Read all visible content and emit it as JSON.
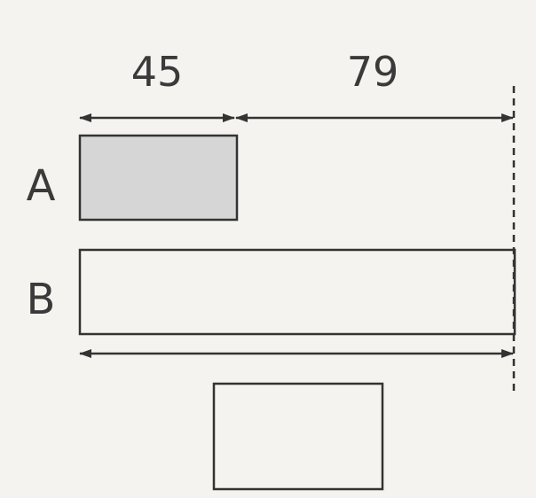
{
  "diagram": {
    "dimensions": [
      {
        "label": "45",
        "value": 45
      },
      {
        "label": "79",
        "value": 79
      }
    ],
    "rows": [
      {
        "label": "A"
      },
      {
        "label": "B"
      }
    ],
    "colors": {
      "background": "#f4f3ef",
      "stroke": "#333333",
      "shaded_fill": "#d6d6d6",
      "text": "#3a3a3a"
    }
  }
}
